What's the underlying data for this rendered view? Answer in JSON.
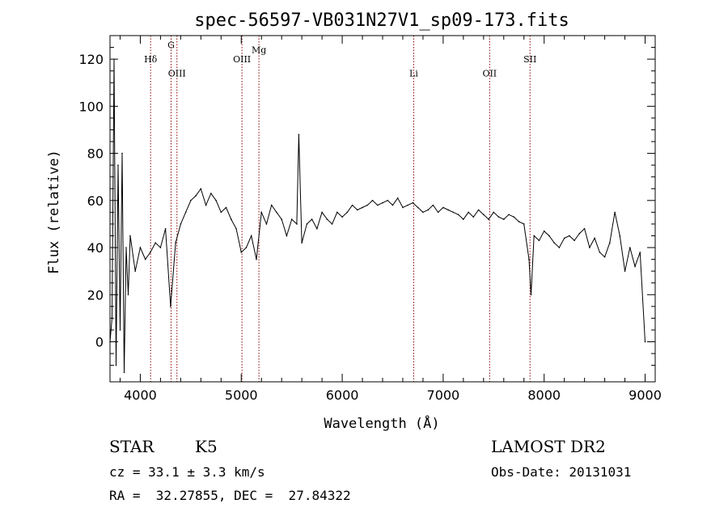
{
  "chart_data": {
    "type": "line",
    "title": "spec-56597-VB031N27V1_sp09-173.fits",
    "xlabel": "Wavelength (Å)",
    "ylabel": "Flux (relative)",
    "xlim": [
      3700,
      9100
    ],
    "ylim": [
      -17,
      130
    ],
    "xticks": [
      4000,
      5000,
      6000,
      7000,
      8000,
      9000
    ],
    "yticks": [
      0,
      20,
      40,
      60,
      80,
      100,
      120
    ],
    "grid": false,
    "line_color": "#000000",
    "marker_color": "#8b0000",
    "spectral_lines": [
      {
        "label": "Hδ",
        "wavelength": 4102,
        "label_flux": 120
      },
      {
        "label": "G",
        "wavelength": 4305,
        "label_flux": 126
      },
      {
        "label": "OIII",
        "wavelength": 4363,
        "label_flux": 114
      },
      {
        "label": "OIII",
        "wavelength": 5007,
        "label_flux": 120
      },
      {
        "label": "Mg",
        "wavelength": 5175,
        "label_flux": 124
      },
      {
        "label": "Li",
        "wavelength": 6708,
        "label_flux": 114
      },
      {
        "label": "OII",
        "wavelength": 7460,
        "label_flux": 114
      },
      {
        "label": "SII",
        "wavelength": 7860,
        "label_flux": 120
      }
    ],
    "series": [
      {
        "x": [
          3700,
          3720,
          3740,
          3760,
          3780,
          3800,
          3820,
          3840,
          3860,
          3880,
          3900,
          3950,
          4000,
          4050,
          4100,
          4150,
          4200,
          4250,
          4300,
          4350,
          4400,
          4450,
          4500,
          4550,
          4600,
          4650,
          4700,
          4750,
          4800,
          4850,
          4900,
          4950,
          5000,
          5050,
          5100,
          5150,
          5200,
          5250,
          5300,
          5350,
          5400,
          5450,
          5500,
          5550,
          5570,
          5600,
          5650,
          5700,
          5750,
          5800,
          5850,
          5900,
          5950,
          6000,
          6050,
          6100,
          6150,
          6200,
          6250,
          6300,
          6350,
          6400,
          6450,
          6500,
          6550,
          6600,
          6650,
          6700,
          6750,
          6800,
          6850,
          6900,
          6950,
          7000,
          7050,
          7100,
          7150,
          7200,
          7250,
          7300,
          7350,
          7400,
          7450,
          7500,
          7550,
          7600,
          7650,
          7700,
          7750,
          7800,
          7850,
          7870,
          7900,
          7950,
          8000,
          8050,
          8100,
          8150,
          8200,
          8250,
          8300,
          8350,
          8400,
          8450,
          8500,
          8550,
          8600,
          8650,
          8700,
          8750,
          8800,
          8850,
          8900,
          8950,
          9000
        ],
        "y": [
          0,
          10,
          120,
          -10,
          75,
          5,
          80,
          -13,
          40,
          20,
          45,
          30,
          40,
          35,
          38,
          42,
          40,
          48,
          15,
          42,
          50,
          55,
          60,
          62,
          65,
          58,
          63,
          60,
          55,
          57,
          52,
          48,
          38,
          40,
          45,
          35,
          55,
          50,
          58,
          55,
          52,
          45,
          52,
          50,
          88,
          42,
          50,
          52,
          48,
          55,
          52,
          50,
          55,
          53,
          55,
          58,
          56,
          57,
          58,
          60,
          58,
          59,
          60,
          58,
          61,
          57,
          58,
          59,
          57,
          55,
          56,
          58,
          55,
          57,
          56,
          55,
          54,
          52,
          55,
          53,
          56,
          54,
          52,
          55,
          53,
          52,
          54,
          53,
          51,
          50,
          35,
          20,
          45,
          43,
          47,
          45,
          42,
          40,
          44,
          45,
          43,
          46,
          48,
          40,
          44,
          38,
          36,
          42,
          55,
          45,
          30,
          40,
          32,
          38,
          0
        ]
      }
    ]
  },
  "info": {
    "object_class": "STAR",
    "subclass": "K5",
    "survey": "LAMOST DR2",
    "redshift": "cz = 33.1 ± 3.3 km/s",
    "obs_date": "Obs-Date: 20131031",
    "coords": "RA =  32.27855, DEC =  27.84322"
  }
}
